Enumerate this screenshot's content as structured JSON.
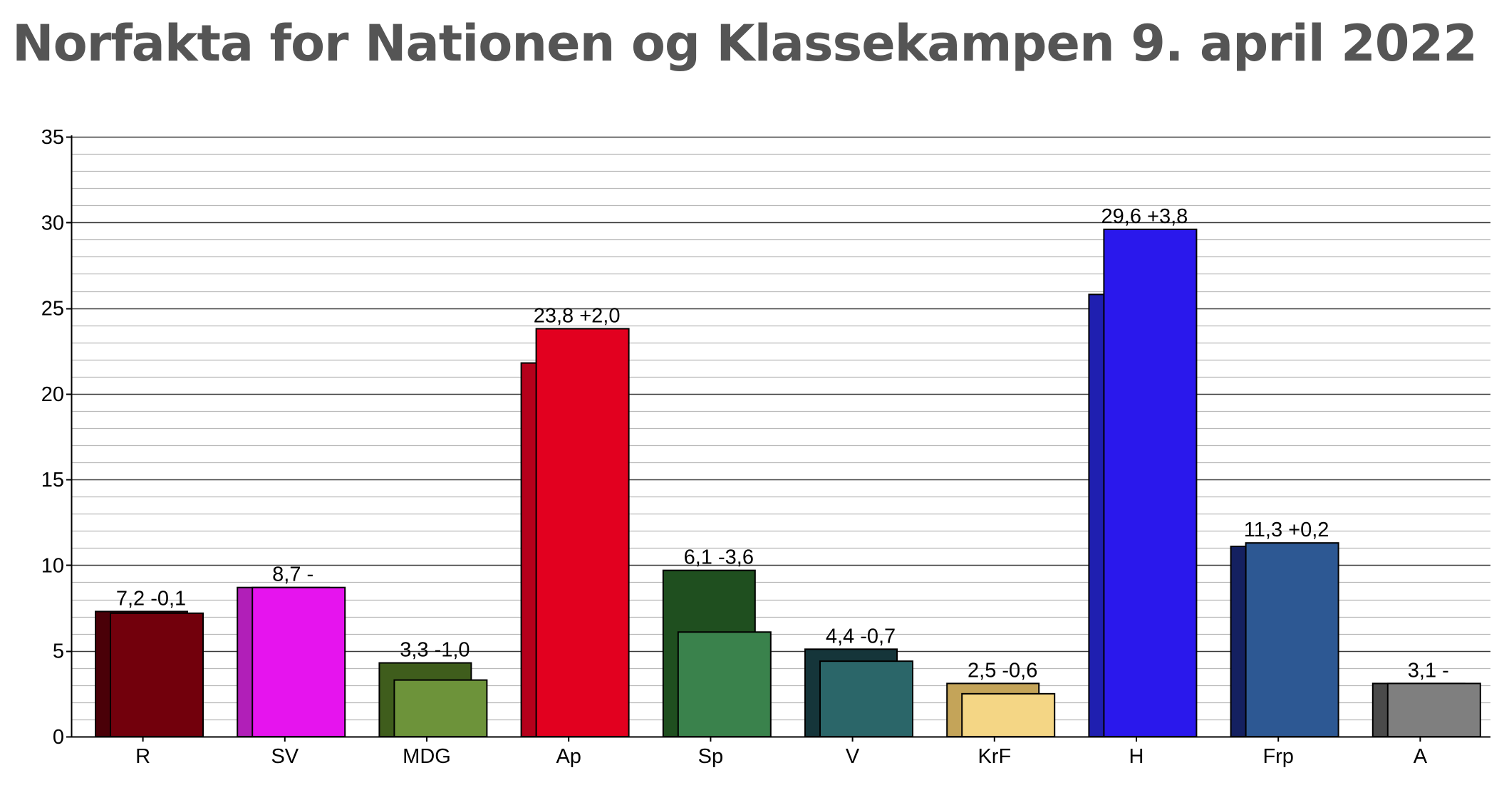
{
  "chart_data": {
    "type": "bar",
    "title": "Norfakta for Nationen og Klassekampen 9. april 2022",
    "xlabel": "",
    "ylabel": "",
    "ylim": [
      0,
      35
    ],
    "yticks": [
      "0",
      "5",
      "10",
      "15",
      "20",
      "25",
      "30",
      "35"
    ],
    "grid": true,
    "categories": [
      "R",
      "SV",
      "MDG",
      "Ap",
      "Sp",
      "V",
      "KrF",
      "H",
      "Frp",
      "A"
    ],
    "series": [
      {
        "values": [
          7.3,
          8.7,
          4.3,
          21.8,
          9.7,
          5.1,
          3.1,
          25.8,
          11.1,
          3.1
        ],
        "colors": [
          "#4a0008",
          "#b11fb8",
          "#3f5d1c",
          "#b5001b",
          "#1f4f1f",
          "#15353a",
          "#c4a459",
          "#1f1fb0",
          "#142060",
          "#4a4a4a"
        ]
      },
      {
        "values": [
          7.2,
          8.7,
          3.3,
          23.8,
          6.1,
          4.4,
          2.5,
          29.6,
          11.3,
          3.1
        ],
        "colors": [
          "#72000c",
          "#e614ee",
          "#6d933a",
          "#e2001f",
          "#3a824c",
          "#2b6669",
          "#f4d685",
          "#2a18ec",
          "#2d5893",
          "#7f7f7f"
        ]
      }
    ],
    "data_labels": [
      "7,2 -0,1",
      "8,7 -",
      "3,3 -1,0",
      "23,8 +2,0",
      "6,1 -3,6",
      "4,4 -0,7",
      "2,5 -0,6",
      "29,6 +3,8",
      "11,3 +0,2",
      "3,1 -"
    ]
  }
}
